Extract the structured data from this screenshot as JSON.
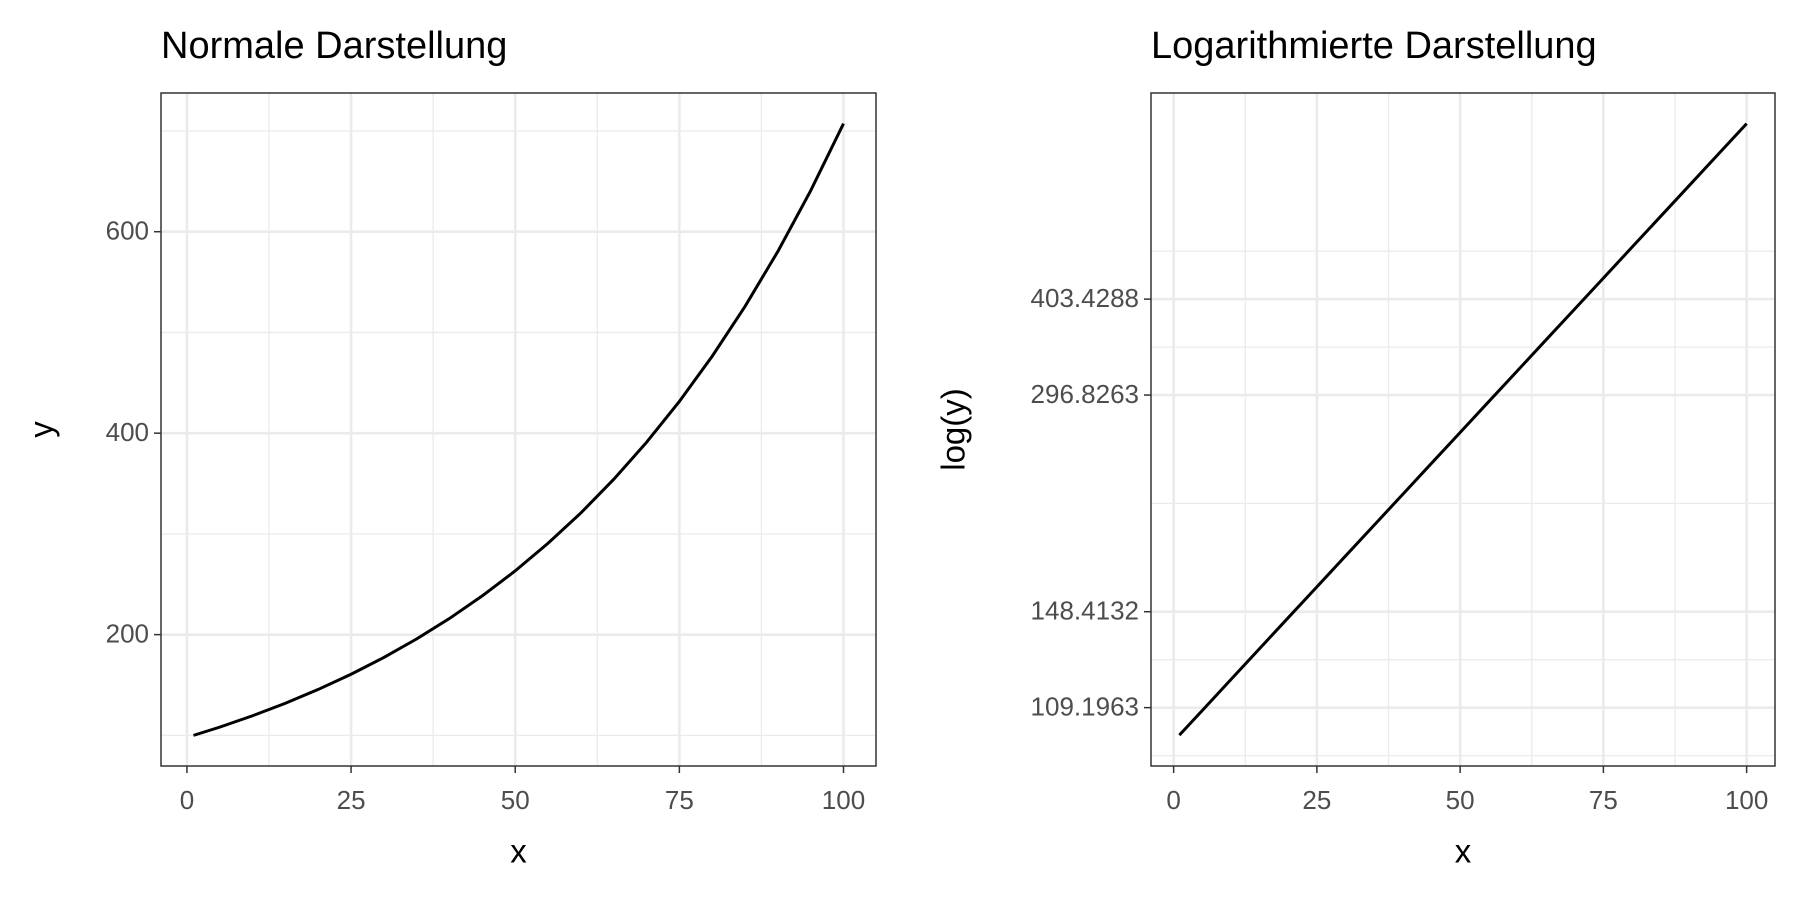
{
  "chart_data": [
    {
      "type": "line",
      "title": "Normale Darstellung",
      "x_label": "x",
      "y_label": "y",
      "x": [
        1,
        5,
        10,
        15,
        20,
        25,
        30,
        35,
        40,
        45,
        50,
        55,
        60,
        65,
        70,
        75,
        80,
        85,
        90,
        95,
        100
      ],
      "values": [
        100,
        108.2,
        119.5,
        131.9,
        145.6,
        160.7,
        177.4,
        195.8,
        216.1,
        238.6,
        263.3,
        290.7,
        320.8,
        354.2,
        390.9,
        431.5,
        476.4,
        525.8,
        580.4,
        640.7,
        707.3
      ],
      "color": "#000000",
      "log_scale": false,
      "grid": true,
      "xlim": [
        -3.95,
        104.95
      ],
      "xticks": [
        0,
        25,
        50,
        75,
        100
      ],
      "ylim": [
        69.6,
        737.7
      ],
      "yticks": [
        200,
        400,
        600
      ]
    },
    {
      "type": "line",
      "title": "Logarithmierte Darstellung",
      "x_label": "x",
      "y_label": "log(y)",
      "x": [
        1,
        5,
        10,
        15,
        20,
        25,
        30,
        35,
        40,
        45,
        50,
        55,
        60,
        65,
        70,
        75,
        80,
        85,
        90,
        95,
        100
      ],
      "values": [
        100,
        108.2,
        119.5,
        131.9,
        145.6,
        160.7,
        177.4,
        195.8,
        216.1,
        238.6,
        263.3,
        290.7,
        320.8,
        354.2,
        390.9,
        431.5,
        476.4,
        525.8,
        580.4,
        640.7,
        707.3
      ],
      "color": "#000000",
      "log_scale": true,
      "grid": true,
      "xlim": [
        -3.95,
        104.95
      ],
      "xticks": [
        0,
        25,
        50,
        75,
        100
      ],
      "ylim": [
        90.6,
        780.1
      ],
      "yticks": [
        109.1963,
        148.4132,
        296.8263,
        403.4288
      ]
    }
  ]
}
